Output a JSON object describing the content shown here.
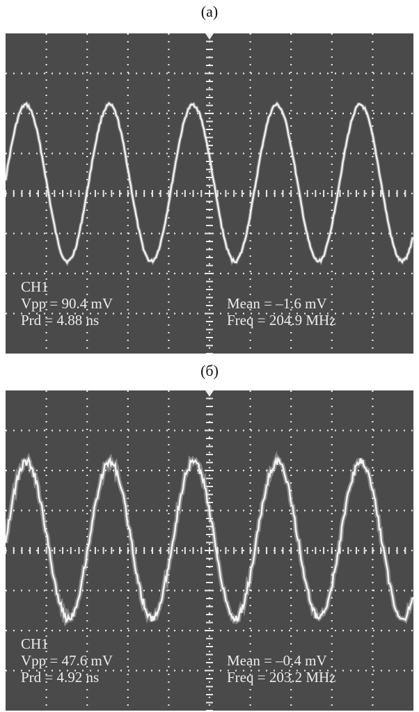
{
  "chart_data": [
    {
      "type": "line",
      "panel_label": "(a)",
      "channel": "CH1",
      "measurements": {
        "vpp": "Vpp = 90.4 mV",
        "prd": "Prd = 4.88 ns",
        "mean": "Mean = –1.6 mV",
        "freq": "Freq = 204.9 MHz"
      },
      "series": [
        {
          "name": "",
          "waveform": "sine",
          "amplitude_divisions": 2.3,
          "period_divisions": 1.0,
          "noise": "low",
          "color": "#f2f2f2"
        }
      ],
      "grid": true,
      "divisions": {
        "x": 10,
        "y": 8
      },
      "background_color": "#4a4a4a"
    },
    {
      "type": "line",
      "panel_label": "(б)",
      "channel": "CH1",
      "measurements": {
        "vpp": "Vpp = 47.6 mV",
        "prd": "Prd = 4.92 ns",
        "mean": "Mean = –0.4 mV",
        "freq": "Freq = 203.2 MHz"
      },
      "series": [
        {
          "name": "",
          "waveform": "sine",
          "amplitude_divisions": 2.3,
          "period_divisions": 1.0,
          "noise": "high",
          "color": "#f2f2f2"
        }
      ],
      "grid": true,
      "divisions": {
        "x": 10,
        "y": 8
      },
      "background_color": "#4a4a4a"
    }
  ]
}
